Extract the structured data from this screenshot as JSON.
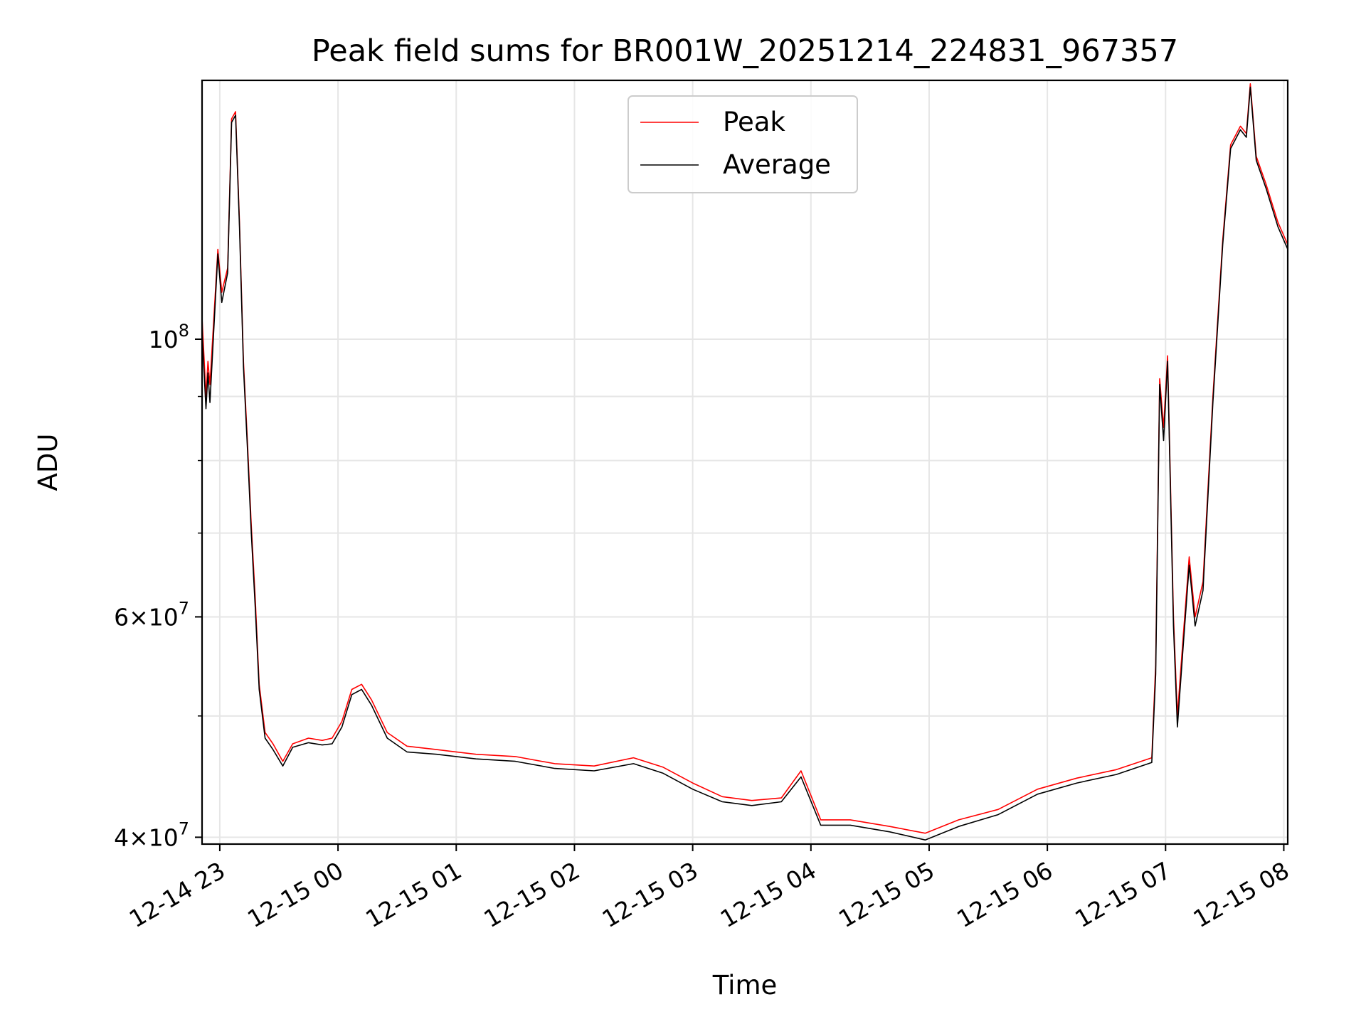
{
  "chart_data": {
    "type": "line",
    "title": "Peak field sums for BR001W_20251214_224831_967357",
    "xlabel": "Time",
    "ylabel": "ADU",
    "yscale": "log",
    "grid": true,
    "legend_position": "top-center",
    "xlim": [
      "2025-12-14 22:51",
      "2025-12-15 08:02"
    ],
    "ylim": [
      39500000,
      161000000
    ],
    "x_ticks": [
      {
        "t": "2025-12-14 23:00",
        "label": "12-14 23"
      },
      {
        "t": "2025-12-15 00:00",
        "label": "12-15 00"
      },
      {
        "t": "2025-12-15 01:00",
        "label": "12-15 01"
      },
      {
        "t": "2025-12-15 02:00",
        "label": "12-15 02"
      },
      {
        "t": "2025-12-15 03:00",
        "label": "12-15 03"
      },
      {
        "t": "2025-12-15 04:00",
        "label": "12-15 04"
      },
      {
        "t": "2025-12-15 05:00",
        "label": "12-15 05"
      },
      {
        "t": "2025-12-15 06:00",
        "label": "12-15 06"
      },
      {
        "t": "2025-12-15 07:00",
        "label": "12-15 07"
      },
      {
        "t": "2025-12-15 08:00",
        "label": "12-15 08"
      }
    ],
    "y_major_ticks": [
      {
        "v": 40000000,
        "mant": "4",
        "exp": "7"
      },
      {
        "v": 60000000,
        "mant": "6",
        "exp": "7"
      },
      {
        "v": 100000000,
        "mant": "",
        "exp": "8"
      }
    ],
    "y_minor_ticks": [
      50000000,
      70000000,
      80000000,
      90000000
    ],
    "series": [
      {
        "name": "Peak",
        "color": "#ff0000",
        "points": [
          [
            "2025-12-14 22:51",
            104000000
          ],
          [
            "2025-12-14 22:53",
            90000000
          ],
          [
            "2025-12-14 22:54",
            96000000
          ],
          [
            "2025-12-14 22:55",
            92000000
          ],
          [
            "2025-12-14 22:57",
            104000000
          ],
          [
            "2025-12-14 22:59",
            118000000
          ],
          [
            "2025-12-14 23:01",
            109000000
          ],
          [
            "2025-12-14 23:04",
            114000000
          ],
          [
            "2025-12-14 23:06",
            150000000
          ],
          [
            "2025-12-14 23:08",
            152000000
          ],
          [
            "2025-12-14 23:10",
            124000000
          ],
          [
            "2025-12-14 23:12",
            96000000
          ],
          [
            "2025-12-14 23:14",
            83000000
          ],
          [
            "2025-12-14 23:16",
            71000000
          ],
          [
            "2025-12-14 23:18",
            62000000
          ],
          [
            "2025-12-14 23:20",
            53000000
          ],
          [
            "2025-12-14 23:23",
            48500000
          ],
          [
            "2025-12-14 23:27",
            47500000
          ],
          [
            "2025-12-14 23:32",
            46000000
          ],
          [
            "2025-12-14 23:37",
            47500000
          ],
          [
            "2025-12-14 23:45",
            48000000
          ],
          [
            "2025-12-14 23:52",
            47800000
          ],
          [
            "2025-12-14 23:57",
            48000000
          ],
          [
            "2025-12-15 00:02",
            49500000
          ],
          [
            "2025-12-15 00:07",
            52500000
          ],
          [
            "2025-12-15 00:12",
            53000000
          ],
          [
            "2025-12-15 00:17",
            51500000
          ],
          [
            "2025-12-15 00:25",
            48500000
          ],
          [
            "2025-12-15 00:35",
            47300000
          ],
          [
            "2025-12-15 00:50",
            47000000
          ],
          [
            "2025-12-15 01:10",
            46600000
          ],
          [
            "2025-12-15 01:30",
            46400000
          ],
          [
            "2025-12-15 01:50",
            45800000
          ],
          [
            "2025-12-15 02:10",
            45600000
          ],
          [
            "2025-12-15 02:30",
            46300000
          ],
          [
            "2025-12-15 02:45",
            45500000
          ],
          [
            "2025-12-15 03:00",
            44200000
          ],
          [
            "2025-12-15 03:15",
            43100000
          ],
          [
            "2025-12-15 03:30",
            42800000
          ],
          [
            "2025-12-15 03:45",
            43000000
          ],
          [
            "2025-12-15 03:55",
            45200000
          ],
          [
            "2025-12-15 04:05",
            41300000
          ],
          [
            "2025-12-15 04:20",
            41300000
          ],
          [
            "2025-12-15 04:40",
            40800000
          ],
          [
            "2025-12-15 04:58",
            40300000
          ],
          [
            "2025-12-15 05:15",
            41300000
          ],
          [
            "2025-12-15 05:35",
            42100000
          ],
          [
            "2025-12-15 05:55",
            43700000
          ],
          [
            "2025-12-15 06:15",
            44600000
          ],
          [
            "2025-12-15 06:35",
            45300000
          ],
          [
            "2025-12-15 06:53",
            46300000
          ],
          [
            "2025-12-15 06:55",
            55000000
          ],
          [
            "2025-12-15 06:57",
            93000000
          ],
          [
            "2025-12-15 06:59",
            85000000
          ],
          [
            "2025-12-15 07:01",
            97000000
          ],
          [
            "2025-12-15 07:04",
            60000000
          ],
          [
            "2025-12-15 07:06",
            50000000
          ],
          [
            "2025-12-15 07:09",
            58000000
          ],
          [
            "2025-12-15 07:12",
            67000000
          ],
          [
            "2025-12-15 07:15",
            60000000
          ],
          [
            "2025-12-15 07:19",
            64000000
          ],
          [
            "2025-12-15 07:24",
            90000000
          ],
          [
            "2025-12-15 07:29",
            120000000
          ],
          [
            "2025-12-15 07:33",
            143000000
          ],
          [
            "2025-12-15 07:38",
            148000000
          ],
          [
            "2025-12-15 07:41",
            146000000
          ],
          [
            "2025-12-15 07:43",
            160000000
          ],
          [
            "2025-12-15 07:46",
            140000000
          ],
          [
            "2025-12-15 07:51",
            133000000
          ],
          [
            "2025-12-15 07:57",
            124000000
          ],
          [
            "2025-12-15 08:02",
            119000000
          ]
        ]
      },
      {
        "name": "Average",
        "color": "#000000",
        "points": [
          [
            "2025-12-14 22:51",
            101000000
          ],
          [
            "2025-12-14 22:53",
            88000000
          ],
          [
            "2025-12-14 22:54",
            94000000
          ],
          [
            "2025-12-14 22:55",
            89000000
          ],
          [
            "2025-12-14 22:57",
            102000000
          ],
          [
            "2025-12-14 22:59",
            117000000
          ],
          [
            "2025-12-14 23:01",
            107000000
          ],
          [
            "2025-12-14 23:04",
            113000000
          ],
          [
            "2025-12-14 23:06",
            149000000
          ],
          [
            "2025-12-14 23:08",
            151000000
          ],
          [
            "2025-12-14 23:10",
            123000000
          ],
          [
            "2025-12-14 23:12",
            95000000
          ],
          [
            "2025-12-14 23:14",
            82000000
          ],
          [
            "2025-12-14 23:16",
            70000000
          ],
          [
            "2025-12-14 23:18",
            61000000
          ],
          [
            "2025-12-14 23:20",
            52500000
          ],
          [
            "2025-12-14 23:23",
            48000000
          ],
          [
            "2025-12-14 23:27",
            47000000
          ],
          [
            "2025-12-14 23:32",
            45600000
          ],
          [
            "2025-12-14 23:37",
            47200000
          ],
          [
            "2025-12-14 23:45",
            47600000
          ],
          [
            "2025-12-14 23:52",
            47400000
          ],
          [
            "2025-12-14 23:57",
            47500000
          ],
          [
            "2025-12-15 00:02",
            49000000
          ],
          [
            "2025-12-15 00:07",
            52000000
          ],
          [
            "2025-12-15 00:12",
            52500000
          ],
          [
            "2025-12-15 00:17",
            51000000
          ],
          [
            "2025-12-15 00:25",
            48000000
          ],
          [
            "2025-12-15 00:35",
            46800000
          ],
          [
            "2025-12-15 00:50",
            46600000
          ],
          [
            "2025-12-15 01:10",
            46200000
          ],
          [
            "2025-12-15 01:30",
            46000000
          ],
          [
            "2025-12-15 01:50",
            45400000
          ],
          [
            "2025-12-15 02:10",
            45200000
          ],
          [
            "2025-12-15 02:30",
            45800000
          ],
          [
            "2025-12-15 02:45",
            45000000
          ],
          [
            "2025-12-15 03:00",
            43700000
          ],
          [
            "2025-12-15 03:15",
            42700000
          ],
          [
            "2025-12-15 03:30",
            42400000
          ],
          [
            "2025-12-15 03:45",
            42700000
          ],
          [
            "2025-12-15 03:55",
            44700000
          ],
          [
            "2025-12-15 04:05",
            40900000
          ],
          [
            "2025-12-15 04:20",
            40900000
          ],
          [
            "2025-12-15 04:40",
            40400000
          ],
          [
            "2025-12-15 04:58",
            39800000
          ],
          [
            "2025-12-15 05:15",
            40800000
          ],
          [
            "2025-12-15 05:35",
            41700000
          ],
          [
            "2025-12-15 05:55",
            43300000
          ],
          [
            "2025-12-15 06:15",
            44200000
          ],
          [
            "2025-12-15 06:35",
            44900000
          ],
          [
            "2025-12-15 06:53",
            45900000
          ],
          [
            "2025-12-15 06:55",
            54000000
          ],
          [
            "2025-12-15 06:57",
            92000000
          ],
          [
            "2025-12-15 06:59",
            83000000
          ],
          [
            "2025-12-15 07:01",
            96000000
          ],
          [
            "2025-12-15 07:04",
            59000000
          ],
          [
            "2025-12-15 07:06",
            49000000
          ],
          [
            "2025-12-15 07:09",
            57000000
          ],
          [
            "2025-12-15 07:12",
            66000000
          ],
          [
            "2025-12-15 07:15",
            59000000
          ],
          [
            "2025-12-15 07:19",
            63000000
          ],
          [
            "2025-12-15 07:24",
            89000000
          ],
          [
            "2025-12-15 07:29",
            119000000
          ],
          [
            "2025-12-15 07:33",
            142000000
          ],
          [
            "2025-12-15 07:38",
            147000000
          ],
          [
            "2025-12-15 07:41",
            145000000
          ],
          [
            "2025-12-15 07:43",
            159000000
          ],
          [
            "2025-12-15 07:46",
            139000000
          ],
          [
            "2025-12-15 07:51",
            132000000
          ],
          [
            "2025-12-15 07:57",
            123000000
          ],
          [
            "2025-12-15 08:02",
            118000000
          ]
        ]
      }
    ]
  }
}
